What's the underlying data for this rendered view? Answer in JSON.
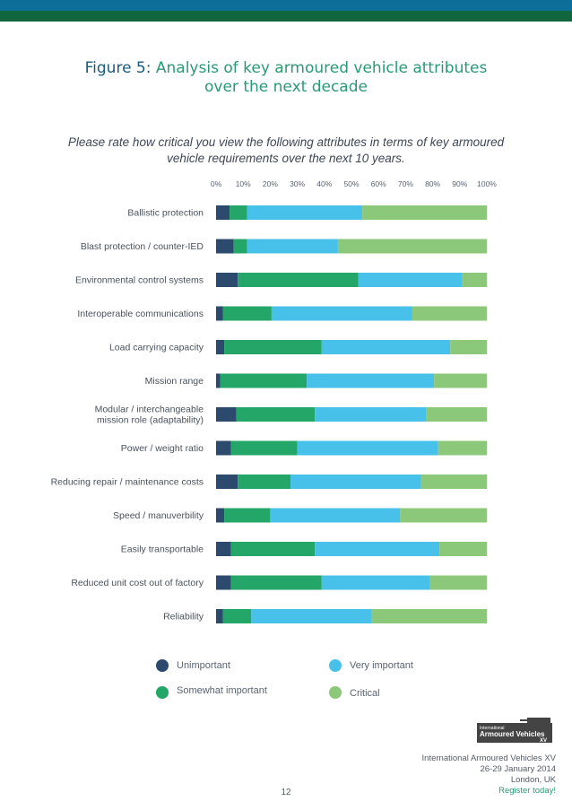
{
  "figure": {
    "label": "Figure 5:",
    "title_line1": "Analysis of key armoured vehicle attributes",
    "title_line2": "over the next decade"
  },
  "question": "Please rate how critical you view the following attributes in terms of key armoured vehicle requirements over the next 10 years.",
  "chart_data": {
    "type": "bar",
    "orientation": "horizontal",
    "stacked": true,
    "title": "Analysis of key armoured vehicle attributes over the next decade",
    "xlim": [
      0,
      100
    ],
    "xticks": [
      "0%",
      "10%",
      "20%",
      "30%",
      "40%",
      "50%",
      "60%",
      "70%",
      "80%",
      "90%",
      "100%"
    ],
    "categories": [
      "Ballistic protection",
      "Blast protection / counter-IED",
      "Environmental control systems",
      "Interoperable communications",
      "Load carrying capacity",
      "Mission range",
      "Modular / interchangeable mission role (adaptability)",
      "Power / weight ratio",
      "Reducing repair / maintenance costs",
      "Speed / manuverbility",
      "Easily transportable",
      "Reduced unit cost out of factory",
      "Reliability"
    ],
    "category_lines": [
      [
        "Ballistic protection"
      ],
      [
        "Blast protection / counter-IED"
      ],
      [
        "Environmental control systems"
      ],
      [
        "Interoperable communications"
      ],
      [
        "Load carrying capacity"
      ],
      [
        "Mission range"
      ],
      [
        "Modular / interchangeable",
        "mission role (adaptability)"
      ],
      [
        "Power / weight ratio"
      ],
      [
        "Reducing repair / maintenance costs"
      ],
      [
        "Speed / manuverbility"
      ],
      [
        "Easily transportable"
      ],
      [
        "Reduced unit cost out of factory"
      ],
      [
        "Reliability"
      ]
    ],
    "series": [
      {
        "name": "Unimportant",
        "color": "#2b4a6d",
        "values": [
          5,
          6.5,
          8,
          2.5,
          3,
          1.5,
          7.5,
          5.5,
          8,
          3,
          5.5,
          5.5,
          2.5
        ]
      },
      {
        "name": "Somewhat important",
        "color": "#23a667",
        "values": [
          6.5,
          5,
          44.5,
          18,
          36,
          32,
          29,
          24.5,
          19.5,
          17,
          31,
          33.5,
          10.5
        ]
      },
      {
        "name": "Very important",
        "color": "#48c1ea",
        "values": [
          42.5,
          33.5,
          38.5,
          52,
          47.5,
          47,
          41,
          52,
          48,
          48,
          46,
          40,
          44.5
        ]
      },
      {
        "name": "Critical",
        "color": "#8cc87a",
        "values": [
          46,
          55,
          9,
          27.5,
          13.5,
          19.5,
          22.5,
          18,
          24.5,
          32,
          17.5,
          21,
          42.5
        ]
      }
    ]
  },
  "legend": [
    {
      "label": "Unimportant",
      "color": "#2b4a6d"
    },
    {
      "label": "Very important",
      "color": "#48c1ea"
    },
    {
      "label": "Somewhat important",
      "color": "#23a667"
    },
    {
      "label": "Critical",
      "color": "#8cc87a"
    }
  ],
  "logo": {
    "line1": "International",
    "line2": "Armoured Vehicles",
    "line3": "XV"
  },
  "footer": {
    "event": "International Armoured Vehicles XV",
    "dates": "26-29 January 2014",
    "location": "London, UK",
    "cta": "Register today!"
  },
  "page_number": "12",
  "colors": {
    "band_blue": "#0b6f99",
    "band_green": "#12663f",
    "accent": "#2a9a73"
  }
}
